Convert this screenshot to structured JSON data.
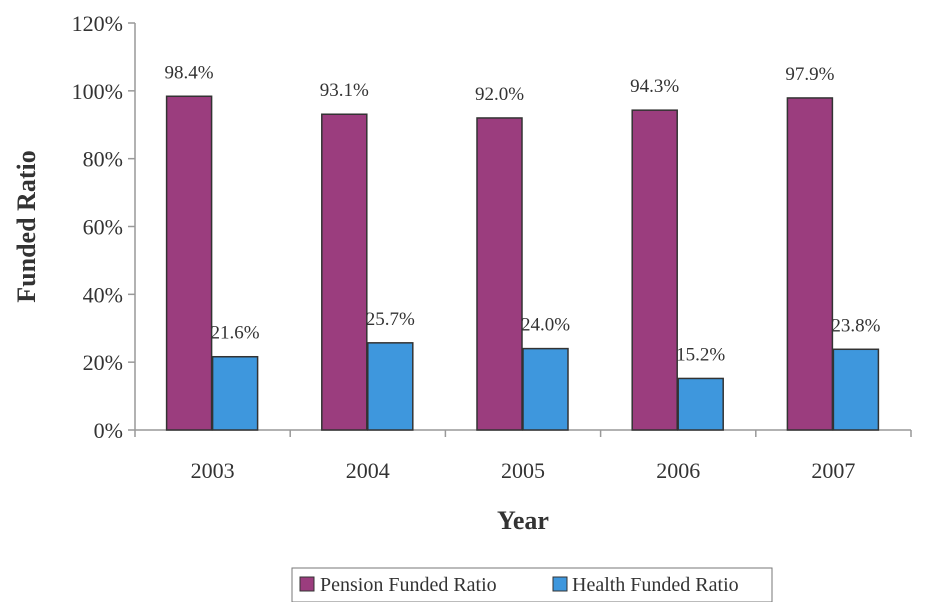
{
  "chart_data": {
    "type": "bar",
    "categories": [
      "2003",
      "2004",
      "2005",
      "2006",
      "2007"
    ],
    "series": [
      {
        "name": "Pension Funded Ratio",
        "values": [
          98.4,
          93.1,
          92.0,
          94.3,
          97.9
        ],
        "labels": [
          "98.4%",
          "93.1%",
          "92.0%",
          "94.3%",
          "97.9%"
        ],
        "color": "#9B3D7E"
      },
      {
        "name": "Health Funded Ratio",
        "values": [
          21.6,
          25.7,
          24.0,
          15.2,
          23.8
        ],
        "labels": [
          "21.6%",
          "25.7%",
          "24.0%",
          "15.2%",
          "23.8%"
        ],
        "color": "#3E97DD"
      }
    ],
    "xlabel": "Year",
    "ylabel": "Funded Ratio",
    "ylim": [
      0,
      120
    ],
    "yticks": [
      0,
      20,
      40,
      60,
      80,
      100,
      120
    ],
    "ytick_labels": [
      "0%",
      "20%",
      "40%",
      "60%",
      "80%",
      "100%",
      "120%"
    ],
    "grid": false,
    "legend_position": "bottom"
  }
}
